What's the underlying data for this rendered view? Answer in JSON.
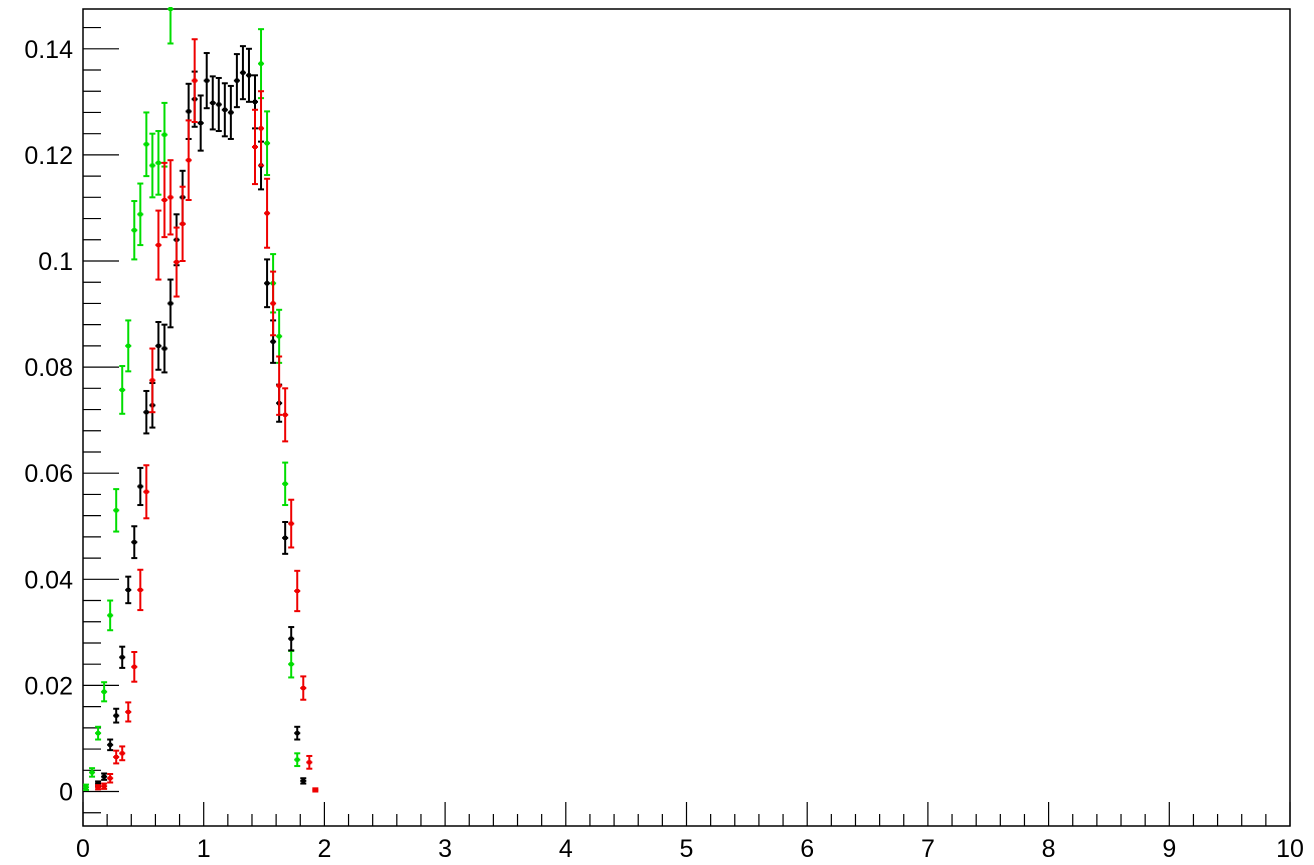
{
  "chart_data": {
    "type": "scatter",
    "title": "",
    "xlabel": "",
    "ylabel": "",
    "xlim": [
      0,
      10
    ],
    "ylim": [
      -0.0065,
      0.1475
    ],
    "grid": false,
    "legend": "none",
    "x_ticks": [
      0,
      1,
      2,
      3,
      4,
      5,
      6,
      7,
      8,
      9,
      10
    ],
    "x_tick_labels": [
      "0",
      "1",
      "2",
      "3",
      "4",
      "5",
      "6",
      "7",
      "8",
      "9",
      "10"
    ],
    "y_ticks": [
      0,
      0.02,
      0.04,
      0.06,
      0.08,
      0.1,
      0.12,
      0.14
    ],
    "y_tick_labels": [
      "0",
      "0.02",
      "0.04",
      "0.06",
      "0.08",
      "0.1",
      "0.12",
      "0.14"
    ],
    "series": [
      {
        "color": "#00dd00",
        "points": [
          [
            0.025,
            0.0008,
            0.0005
          ],
          [
            0.075,
            0.0036,
            0.0008
          ],
          [
            0.125,
            0.011,
            0.0012
          ],
          [
            0.175,
            0.0188,
            0.0018
          ],
          [
            0.225,
            0.0332,
            0.0028
          ],
          [
            0.275,
            0.053,
            0.004
          ],
          [
            0.325,
            0.0757,
            0.0045
          ],
          [
            0.375,
            0.084,
            0.0048
          ],
          [
            0.425,
            0.1058,
            0.0055
          ],
          [
            0.475,
            0.1088,
            0.0058
          ],
          [
            0.525,
            0.122,
            0.006
          ],
          [
            0.575,
            0.118,
            0.006
          ],
          [
            0.625,
            0.1185,
            0.006
          ],
          [
            0.675,
            0.1238,
            0.006
          ],
          [
            0.725,
            0.1475,
            0.0065
          ],
          [
            1.475,
            0.1372,
            0.0065
          ],
          [
            1.525,
            0.1222,
            0.006
          ],
          [
            1.575,
            0.0958,
            0.0055
          ],
          [
            1.625,
            0.0858,
            0.005
          ],
          [
            1.675,
            0.058,
            0.004
          ],
          [
            1.725,
            0.024,
            0.0025
          ],
          [
            1.775,
            0.006,
            0.0012
          ]
        ]
      },
      {
        "color": "#000000",
        "points": [
          [
            0.125,
            0.0015,
            0.0004
          ],
          [
            0.175,
            0.0028,
            0.0006
          ],
          [
            0.225,
            0.0088,
            0.001
          ],
          [
            0.275,
            0.0143,
            0.0013
          ],
          [
            0.325,
            0.0253,
            0.002
          ],
          [
            0.375,
            0.038,
            0.0025
          ],
          [
            0.425,
            0.047,
            0.003
          ],
          [
            0.475,
            0.0575,
            0.0035
          ],
          [
            0.525,
            0.0715,
            0.004
          ],
          [
            0.575,
            0.0728,
            0.0042
          ],
          [
            0.625,
            0.084,
            0.0045
          ],
          [
            0.675,
            0.0835,
            0.0045
          ],
          [
            0.725,
            0.092,
            0.0045
          ],
          [
            0.775,
            0.104,
            0.0048
          ],
          [
            0.825,
            0.112,
            0.005
          ],
          [
            0.875,
            0.1282,
            0.0052
          ],
          [
            0.925,
            0.1305,
            0.0052
          ],
          [
            0.975,
            0.126,
            0.0052
          ],
          [
            1.025,
            0.134,
            0.0052
          ],
          [
            1.075,
            0.1298,
            0.005
          ],
          [
            1.125,
            0.1295,
            0.005
          ],
          [
            1.175,
            0.1285,
            0.005
          ],
          [
            1.225,
            0.128,
            0.005
          ],
          [
            1.275,
            0.134,
            0.005
          ],
          [
            1.325,
            0.1355,
            0.005
          ],
          [
            1.375,
            0.135,
            0.005
          ],
          [
            1.425,
            0.13,
            0.005
          ],
          [
            1.475,
            0.118,
            0.0045
          ],
          [
            1.525,
            0.0958,
            0.0045
          ],
          [
            1.575,
            0.0848,
            0.004
          ],
          [
            1.625,
            0.0732,
            0.0035
          ],
          [
            1.675,
            0.0478,
            0.003
          ],
          [
            1.725,
            0.0288,
            0.0022
          ],
          [
            1.775,
            0.011,
            0.0012
          ],
          [
            1.825,
            0.002,
            0.0005
          ]
        ]
      },
      {
        "color": "#ee0000",
        "points": [
          [
            0.125,
            0.0008,
            0.0004
          ],
          [
            0.175,
            0.001,
            0.0005
          ],
          [
            0.225,
            0.0025,
            0.0008
          ],
          [
            0.275,
            0.0065,
            0.0012
          ],
          [
            0.325,
            0.0072,
            0.0013
          ],
          [
            0.375,
            0.015,
            0.0018
          ],
          [
            0.425,
            0.0235,
            0.0028
          ],
          [
            0.475,
            0.038,
            0.0038
          ],
          [
            0.525,
            0.0565,
            0.005
          ],
          [
            0.575,
            0.0775,
            0.006
          ],
          [
            0.625,
            0.103,
            0.0065
          ],
          [
            0.675,
            0.1115,
            0.007
          ],
          [
            0.725,
            0.112,
            0.007
          ],
          [
            0.775,
            0.0998,
            0.0065
          ],
          [
            0.825,
            0.107,
            0.007
          ],
          [
            0.875,
            0.119,
            0.0075
          ],
          [
            0.925,
            0.134,
            0.0078
          ],
          [
            1.425,
            0.1215,
            0.007
          ],
          [
            1.475,
            0.125,
            0.007
          ],
          [
            1.525,
            0.109,
            0.0065
          ],
          [
            1.575,
            0.092,
            0.006
          ],
          [
            1.625,
            0.0765,
            0.0055
          ],
          [
            1.675,
            0.071,
            0.005
          ],
          [
            1.725,
            0.0505,
            0.0045
          ],
          [
            1.775,
            0.0378,
            0.0038
          ],
          [
            1.825,
            0.0195,
            0.0022
          ],
          [
            1.875,
            0.0055,
            0.0012
          ],
          [
            1.925,
            0.0003,
            0.0003
          ]
        ]
      }
    ]
  }
}
